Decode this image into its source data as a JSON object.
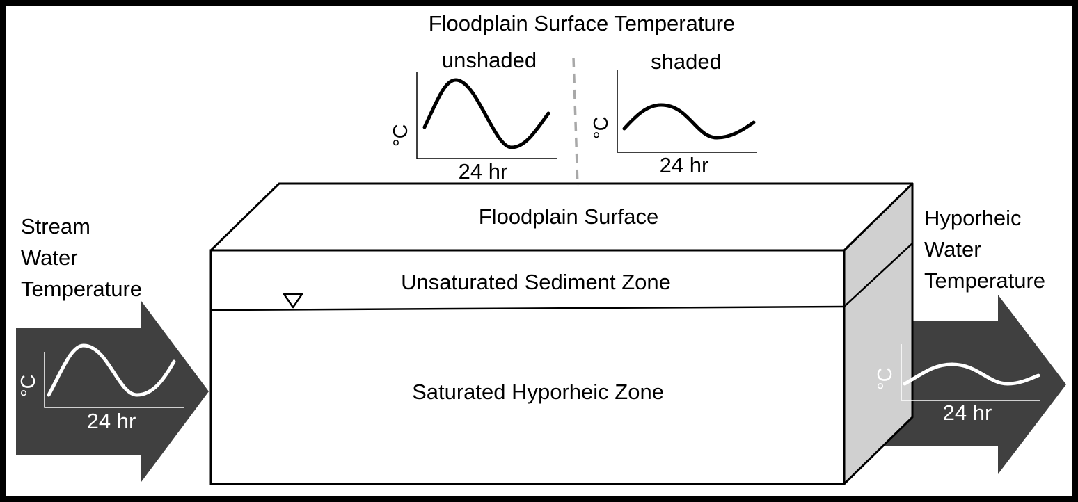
{
  "diagram": {
    "title": "Floodplain Surface Temperature",
    "unshaded_label": "unshaded",
    "shaded_label": "shaded",
    "floodplain_surface_label": "Floodplain Surface",
    "unsaturated_zone_label": "Unsaturated Sediment Zone",
    "saturated_zone_label": "Saturated Hyporheic Zone",
    "stream_label": [
      "Stream",
      "Water",
      "Temperature"
    ],
    "hyporheic_label": [
      "Hyporheic",
      "Water",
      "Temperature"
    ],
    "y_unit": "°C",
    "x_unit": "24 hr",
    "water_table_icon": "water-table-triangle-icon",
    "colors": {
      "arrow": "#404040",
      "block_side": "#d0d0d0",
      "divider": "#a8a8a8",
      "frame": "#000000"
    }
  }
}
